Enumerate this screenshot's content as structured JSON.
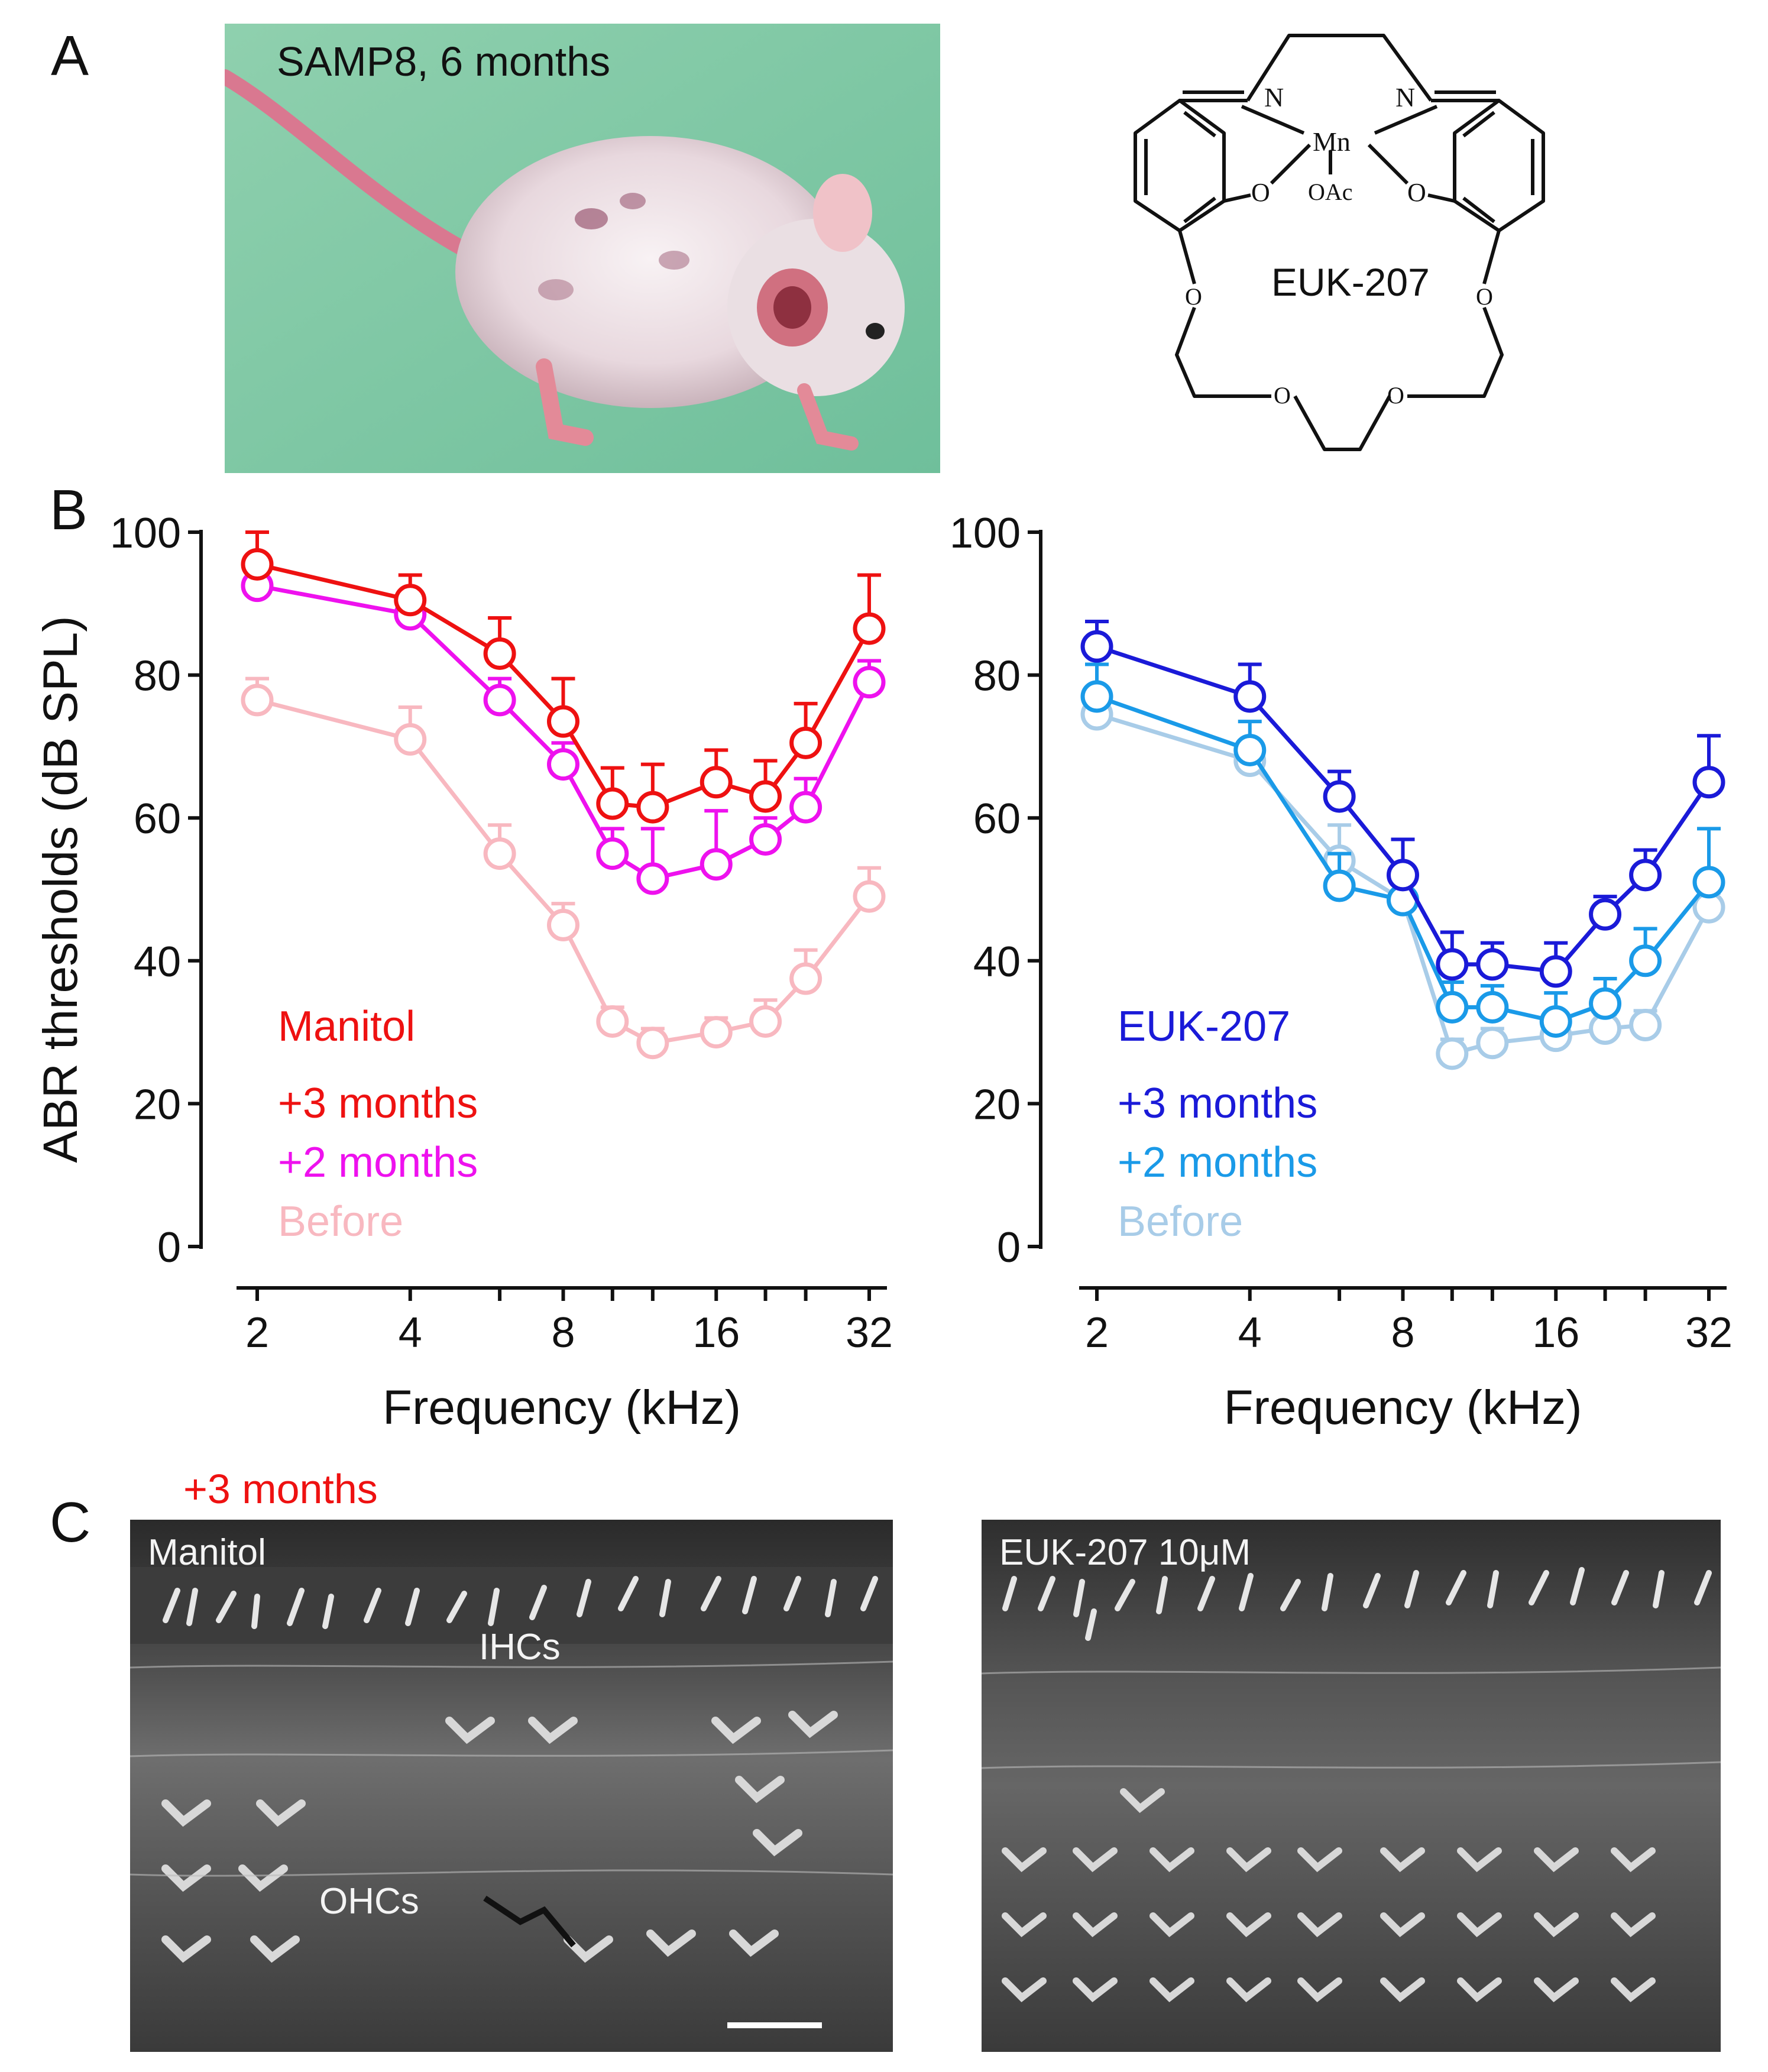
{
  "panels": {
    "a": "A",
    "b": "B",
    "c": "C"
  },
  "panel_a": {
    "mouse_photo_label": "SAMP8, 6 months",
    "compound_name": "EUK-207",
    "atoms": {
      "n": "N",
      "mn": "Mn",
      "o": "O",
      "oac": "OAc"
    }
  },
  "panel_c": {
    "header": "+3 months",
    "left_label": "Manitol",
    "right_label": "EUK-207 10μM",
    "ihc_label": "IHCs",
    "ohc_label": "OHCs"
  },
  "colors": {
    "manitol_3m": "#ee1111",
    "manitol_2m": "#ee11ee",
    "manitol_before": "#f8b8c0",
    "euk_3m": "#1a1ad8",
    "euk_2m": "#1a9ae8",
    "euk_before": "#a8cce8"
  },
  "chart_data": [
    {
      "type": "line",
      "title": "Manitol",
      "xlabel": "Frequency (kHz)",
      "ylabel": "ABR thresholds (dB SPL)",
      "xscale": "log2",
      "ylim": [
        0,
        100
      ],
      "yticks": [
        0,
        20,
        40,
        60,
        80,
        100
      ],
      "xticks": [
        2,
        4,
        8,
        16,
        32
      ],
      "x": [
        2,
        4,
        6,
        8,
        10,
        12,
        16,
        20,
        24,
        32
      ],
      "legend_placement": "bottom-left",
      "series": [
        {
          "name": "Before",
          "color": "#f8b8c0",
          "values": [
            76.5,
            71,
            55,
            45,
            31.5,
            28.5,
            30,
            31.5,
            37.5,
            49
          ],
          "errors": [
            3,
            4.5,
            4,
            3,
            2,
            2,
            2,
            3,
            4,
            4
          ]
        },
        {
          "name": "+2 months",
          "color": "#ee11ee",
          "values": [
            92.5,
            88.5,
            76.5,
            67.5,
            55,
            51.5,
            53.5,
            57,
            61.5,
            79
          ],
          "errors": [
            2,
            3,
            3,
            3,
            3.5,
            7,
            7.5,
            3,
            4,
            3
          ]
        },
        {
          "name": "+3 months",
          "color": "#ee1111",
          "values": [
            95.5,
            90.5,
            83,
            73.5,
            62,
            61.5,
            65,
            63,
            70.5,
            86.5
          ],
          "errors": [
            4.5,
            3.5,
            5,
            6,
            5,
            6,
            4.5,
            5,
            5.5,
            7.5
          ]
        }
      ]
    },
    {
      "type": "line",
      "title": "EUK-207",
      "xlabel": "Frequency (kHz)",
      "ylabel": "",
      "xscale": "log2",
      "ylim": [
        0,
        100
      ],
      "yticks": [
        0,
        20,
        40,
        60,
        80,
        100
      ],
      "xticks": [
        2,
        4,
        8,
        16,
        32
      ],
      "x": [
        2,
        4,
        6,
        8,
        10,
        12,
        16,
        20,
        24,
        32
      ],
      "legend_placement": "bottom-left",
      "series": [
        {
          "name": "Before",
          "color": "#a8cce8",
          "values": [
            74.5,
            68,
            54,
            48.5,
            27,
            28.5,
            29.5,
            30.5,
            31,
            47.5
          ],
          "errors": [
            2,
            2,
            5,
            3,
            2,
            2,
            2,
            2,
            2,
            2
          ]
        },
        {
          "name": "+2 months",
          "color": "#1a9ae8",
          "values": [
            77,
            69.5,
            50.5,
            48.5,
            33.5,
            33.5,
            31.5,
            34,
            40,
            51
          ],
          "errors": [
            4.5,
            4,
            4.5,
            3,
            3.5,
            3,
            4,
            3.5,
            4.5,
            7.5
          ]
        },
        {
          "name": "+3 months",
          "color": "#1a1ad8",
          "values": [
            84,
            77,
            63,
            52,
            39.5,
            39.5,
            38.5,
            46.5,
            52,
            65
          ],
          "errors": [
            3.5,
            4.5,
            3.5,
            5,
            4.5,
            3,
            4,
            2.5,
            3.5,
            6.5
          ]
        }
      ]
    }
  ]
}
